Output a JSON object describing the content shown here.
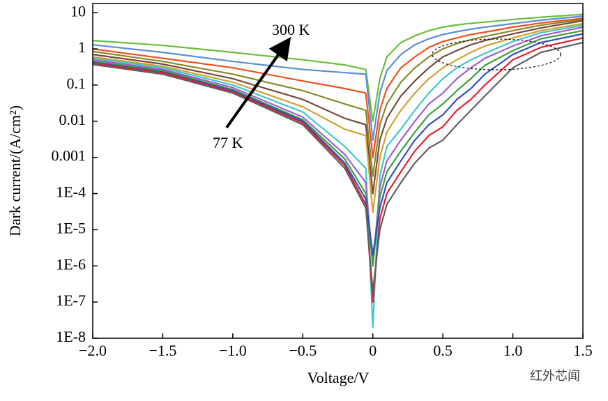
{
  "chart_data": {
    "type": "line",
    "x_label": "Voltage/V",
    "y_label": "Dark current/(A/cm²)",
    "annotations": [
      "300 K",
      "77 K"
    ],
    "yscale": "log",
    "grid": false,
    "xlim": [
      -2,
      1.5
    ],
    "ylim": [
      1e-08,
      18
    ],
    "xticks": [
      {
        "value": -2,
        "label": "−2.0"
      },
      {
        "value": -1.5,
        "label": "−1.5"
      },
      {
        "value": -1,
        "label": "−1.0"
      },
      {
        "value": -0.5,
        "label": "−0.5"
      },
      0,
      0.5,
      {
        "value": 1,
        "label": "1.0"
      },
      1.5
    ],
    "yticks": [
      {
        "value": 1e-08,
        "label": "1E-8"
      },
      {
        "value": 1e-07,
        "label": "1E-7"
      },
      {
        "value": 1e-06,
        "label": "1E-6"
      },
      {
        "value": 1e-05,
        "label": "1E-5"
      },
      {
        "value": 0.0001,
        "label": "1E-4"
      },
      0.001,
      0.01,
      0.1,
      1,
      10
    ],
    "x": [
      -2,
      -1.5,
      -1,
      -0.5,
      -0.2,
      -0.05,
      0,
      0.05,
      0.1,
      0.2,
      0.3,
      0.4,
      0.5,
      0.6,
      0.7,
      0.8,
      1.0,
      1.2,
      1.5
    ],
    "series": [
      {
        "color": "#6abf3a",
        "values": [
          1.7,
          1.25,
          0.8,
          0.5,
          0.36,
          0.27,
          0.01,
          0.15,
          0.6,
          1.5,
          2.3,
          3.2,
          4,
          4.6,
          5.1,
          5.5,
          6.5,
          7.5,
          9
        ]
      },
      {
        "color": "#5b8fd4",
        "values": [
          1.3,
          0.8,
          0.45,
          0.27,
          0.22,
          0.2,
          0.003,
          0.06,
          0.25,
          0.7,
          1.3,
          1.9,
          2.5,
          3,
          3.5,
          4,
          5,
          6.2,
          8
        ]
      },
      {
        "color": "#f0501e",
        "values": [
          1.0,
          0.55,
          0.3,
          0.13,
          0.08,
          0.06,
          0.001,
          0.02,
          0.08,
          0.3,
          0.6,
          1.1,
          1.6,
          2,
          2.5,
          2.9,
          4,
          5.2,
          7
        ]
      },
      {
        "color": "#8a8a2a",
        "values": [
          0.85,
          0.45,
          0.2,
          0.07,
          0.03,
          0.02,
          0.0003,
          0.008,
          0.03,
          0.12,
          0.3,
          0.6,
          1.0,
          1.4,
          1.8,
          2.2,
          3.2,
          4.5,
          6.5
        ]
      },
      {
        "color": "#7a4a3a",
        "values": [
          0.7,
          0.38,
          0.15,
          0.04,
          0.012,
          0.008,
          0.0001,
          0.003,
          0.012,
          0.05,
          0.13,
          0.3,
          0.6,
          0.9,
          1.3,
          1.7,
          2.6,
          3.8,
          6
        ]
      },
      {
        "color": "#d0a030",
        "values": [
          0.6,
          0.33,
          0.12,
          0.025,
          0.006,
          0.004,
          3e-05,
          0.001,
          0.005,
          0.02,
          0.06,
          0.15,
          0.3,
          0.5,
          0.8,
          1.2,
          2,
          3.2,
          5
        ]
      },
      {
        "color": "#3fc8c8",
        "values": [
          0.55,
          0.3,
          0.1,
          0.018,
          0.002,
          0.0005,
          2e-08,
          0.0003,
          0.002,
          0.006,
          0.02,
          0.06,
          0.15,
          0.3,
          0.5,
          0.75,
          1.6,
          2.8,
          4.5
        ]
      },
      {
        "color": "#a060d0",
        "values": [
          0.5,
          0.27,
          0.085,
          0.013,
          0.0012,
          0.0002,
          1e-06,
          0.00015,
          0.0008,
          0.003,
          0.01,
          0.03,
          0.06,
          0.15,
          0.3,
          0.55,
          1.2,
          2.3,
          4
        ]
      },
      {
        "color": "#3aa040",
        "values": [
          0.45,
          0.25,
          0.075,
          0.011,
          0.0009,
          0.0001,
          1e-06,
          8e-05,
          0.0004,
          0.0015,
          0.005,
          0.015,
          0.03,
          0.07,
          0.15,
          0.35,
          0.9,
          1.9,
          3.2
        ]
      },
      {
        "color": "#3050c0",
        "values": [
          0.42,
          0.23,
          0.07,
          0.01,
          0.0007,
          7e-05,
          2e-06,
          4e-05,
          0.0002,
          0.0008,
          0.003,
          0.008,
          0.015,
          0.04,
          0.08,
          0.2,
          0.7,
          1.5,
          2.6
        ]
      },
      {
        "color": "#e02030",
        "values": [
          0.4,
          0.22,
          0.065,
          0.009,
          0.0006,
          5e-05,
          1e-07,
          2e-05,
          0.0001,
          0.0004,
          0.0015,
          0.004,
          0.007,
          0.02,
          0.04,
          0.1,
          0.5,
          1.1,
          2
        ]
      },
      {
        "color": "#606060",
        "values": [
          0.37,
          0.2,
          0.06,
          0.008,
          0.0005,
          4e-05,
          2e-07,
          1e-05,
          5e-05,
          0.0002,
          0.0007,
          0.0018,
          0.003,
          0.008,
          0.02,
          0.05,
          0.3,
          0.8,
          1.5
        ]
      }
    ]
  },
  "watermark": "红外芯闻"
}
